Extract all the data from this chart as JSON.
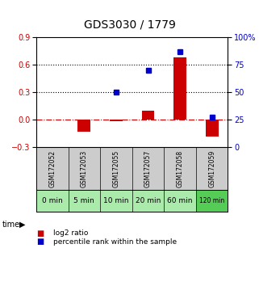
{
  "title": "GDS3030 / 1779",
  "samples": [
    "GSM172052",
    "GSM172053",
    "GSM172055",
    "GSM172057",
    "GSM172058",
    "GSM172059"
  ],
  "time_labels": [
    "0 min",
    "5 min",
    "10 min",
    "20 min",
    "60 min",
    "120 min"
  ],
  "log2_ratio": [
    0.0,
    -0.13,
    -0.02,
    0.1,
    0.68,
    -0.18
  ],
  "pct_raw": [
    null,
    null,
    50,
    70,
    87,
    27
  ],
  "ylim_left": [
    -0.3,
    0.9
  ],
  "ylim_right": [
    0,
    100
  ],
  "yticks_left": [
    -0.3,
    0.0,
    0.3,
    0.6,
    0.9
  ],
  "yticks_right": [
    0,
    25,
    50,
    75,
    100
  ],
  "bar_color_red": "#cc0000",
  "bar_color_blue": "#0000cc",
  "hline_zero_color": "#cc0000",
  "hline_dotted_color": "#000000",
  "bg_plot": "#ffffff",
  "bg_sample_gray": "#cccccc",
  "bg_time_green": "#aaeaaa",
  "bg_time_green_dark": "#55cc55",
  "legend_red_label": "log2 ratio",
  "legend_blue_label": "percentile rank within the sample",
  "title_fontsize": 10,
  "tick_fontsize": 7,
  "bar_width": 0.4
}
